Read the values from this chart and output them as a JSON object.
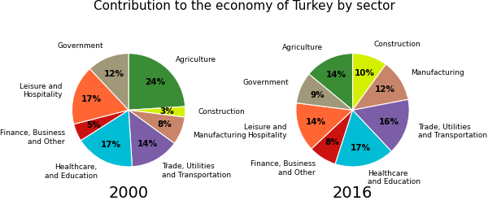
{
  "title": "Contribution to the economy of Turkey by sector",
  "year_2000": {
    "label": "2000",
    "sectors": [
      "Agriculture",
      "Construction",
      "Manufacturing",
      "Trade, Utilities\nand Transportation",
      "Healthcare,\nand Education",
      "Finance, Business\nand Other",
      "Leisure and\nHospitality",
      "Government"
    ],
    "values": [
      24,
      3,
      8,
      14,
      17,
      5,
      17,
      12
    ],
    "colors": [
      "#3a8c35",
      "#d4f000",
      "#c8856a",
      "#7b5ea7",
      "#00bcd4",
      "#cc1111",
      "#ff6633",
      "#a09878"
    ]
  },
  "year_2016": {
    "label": "2016",
    "sectors": [
      "Construction",
      "Manufacturing",
      "Trade, Utilities\nand Transportation",
      "Healthcare\nand Education",
      "Finance, Business\nand Other",
      "Leisure and\nHospitality",
      "Government",
      "Agriculture"
    ],
    "values": [
      10,
      12,
      16,
      17,
      8,
      14,
      9,
      14
    ],
    "colors": [
      "#d4f000",
      "#c8856a",
      "#7b5ea7",
      "#00bcd4",
      "#cc1111",
      "#ff6633",
      "#a09878",
      "#3a8c35"
    ]
  },
  "label_fontsize": 6.5,
  "pct_fontsize": 7.5,
  "title_fontsize": 11,
  "year_fontsize": 14,
  "figsize": [
    6.0,
    2.68
  ],
  "dpi": 100
}
